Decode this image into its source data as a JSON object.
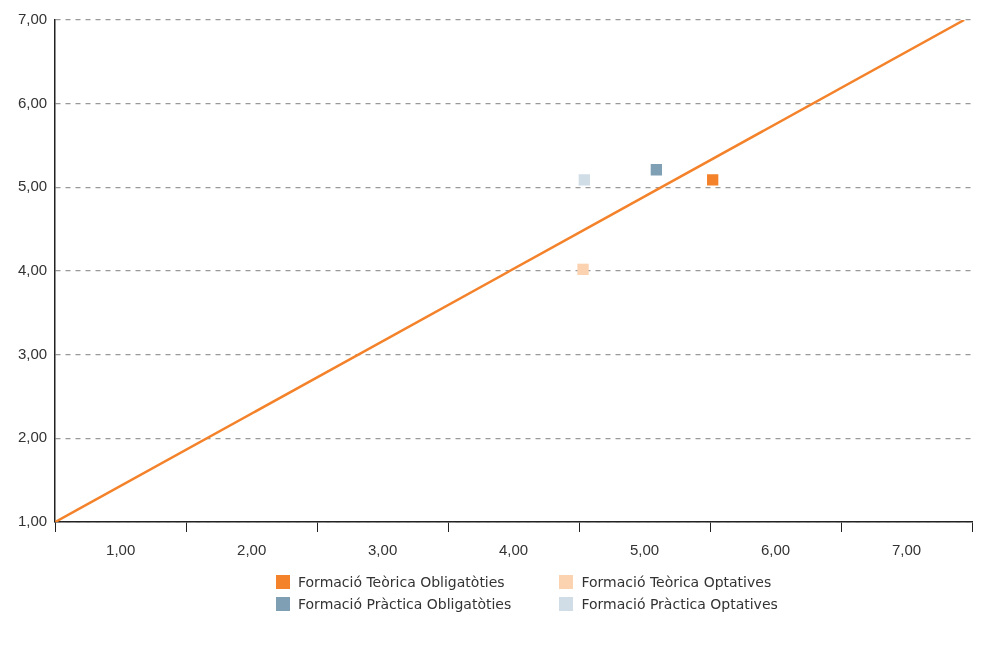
{
  "chart_data": {
    "type": "scatter",
    "xlim": [
      0.5,
      7.5
    ],
    "ylim": [
      1,
      7
    ],
    "xticks": [
      {
        "value": 0.5,
        "label": null
      },
      {
        "value": 1,
        "label": "1,00"
      },
      {
        "value": 1.5,
        "label": null
      },
      {
        "value": 2,
        "label": "2,00"
      },
      {
        "value": 2.5,
        "label": null
      },
      {
        "value": 3,
        "label": "3,00"
      },
      {
        "value": 3.5,
        "label": null
      },
      {
        "value": 4,
        "label": "4,00"
      },
      {
        "value": 4.5,
        "label": null
      },
      {
        "value": 5,
        "label": "5,00"
      },
      {
        "value": 5.5,
        "label": null
      },
      {
        "value": 6,
        "label": "6,00"
      },
      {
        "value": 6.5,
        "label": null
      },
      {
        "value": 7,
        "label": "7,00"
      },
      {
        "value": 7.5,
        "label": null
      }
    ],
    "yticks": [
      {
        "value": 1,
        "label": "1,00"
      },
      {
        "value": 2,
        "label": "2,00"
      },
      {
        "value": 3,
        "label": "3,00"
      },
      {
        "value": 4,
        "label": "4,00"
      },
      {
        "value": 5,
        "label": "5,00"
      },
      {
        "value": 6,
        "label": "6,00"
      },
      {
        "value": 7,
        "label": "7,00"
      }
    ],
    "grid": "y",
    "legend": "bottom",
    "series": [
      {
        "name": "Formació Teòrica Obligatòties",
        "color": "#f4822a",
        "marker": "square",
        "x": [
          5.52
        ],
        "values": [
          5.09
        ]
      },
      {
        "name": "Formació Pràctica Obligatòties",
        "color": "#7f9fb4",
        "marker": "square",
        "x": [
          5.09
        ],
        "values": [
          5.21
        ]
      },
      {
        "name": "Formació Teòrica Optatives",
        "color": "#fbd3b0",
        "marker": "square",
        "x": [
          4.53
        ],
        "values": [
          4.02
        ]
      },
      {
        "name": "Formació Pràctica Optatives",
        "color": "#d0dde7",
        "marker": "square",
        "x": [
          4.54
        ],
        "values": [
          5.09
        ]
      },
      {
        "type": "line",
        "color": "#f4822a",
        "marker": "none",
        "x": [
          0.5,
          7.44
        ],
        "values": [
          1,
          7
        ]
      }
    ]
  }
}
